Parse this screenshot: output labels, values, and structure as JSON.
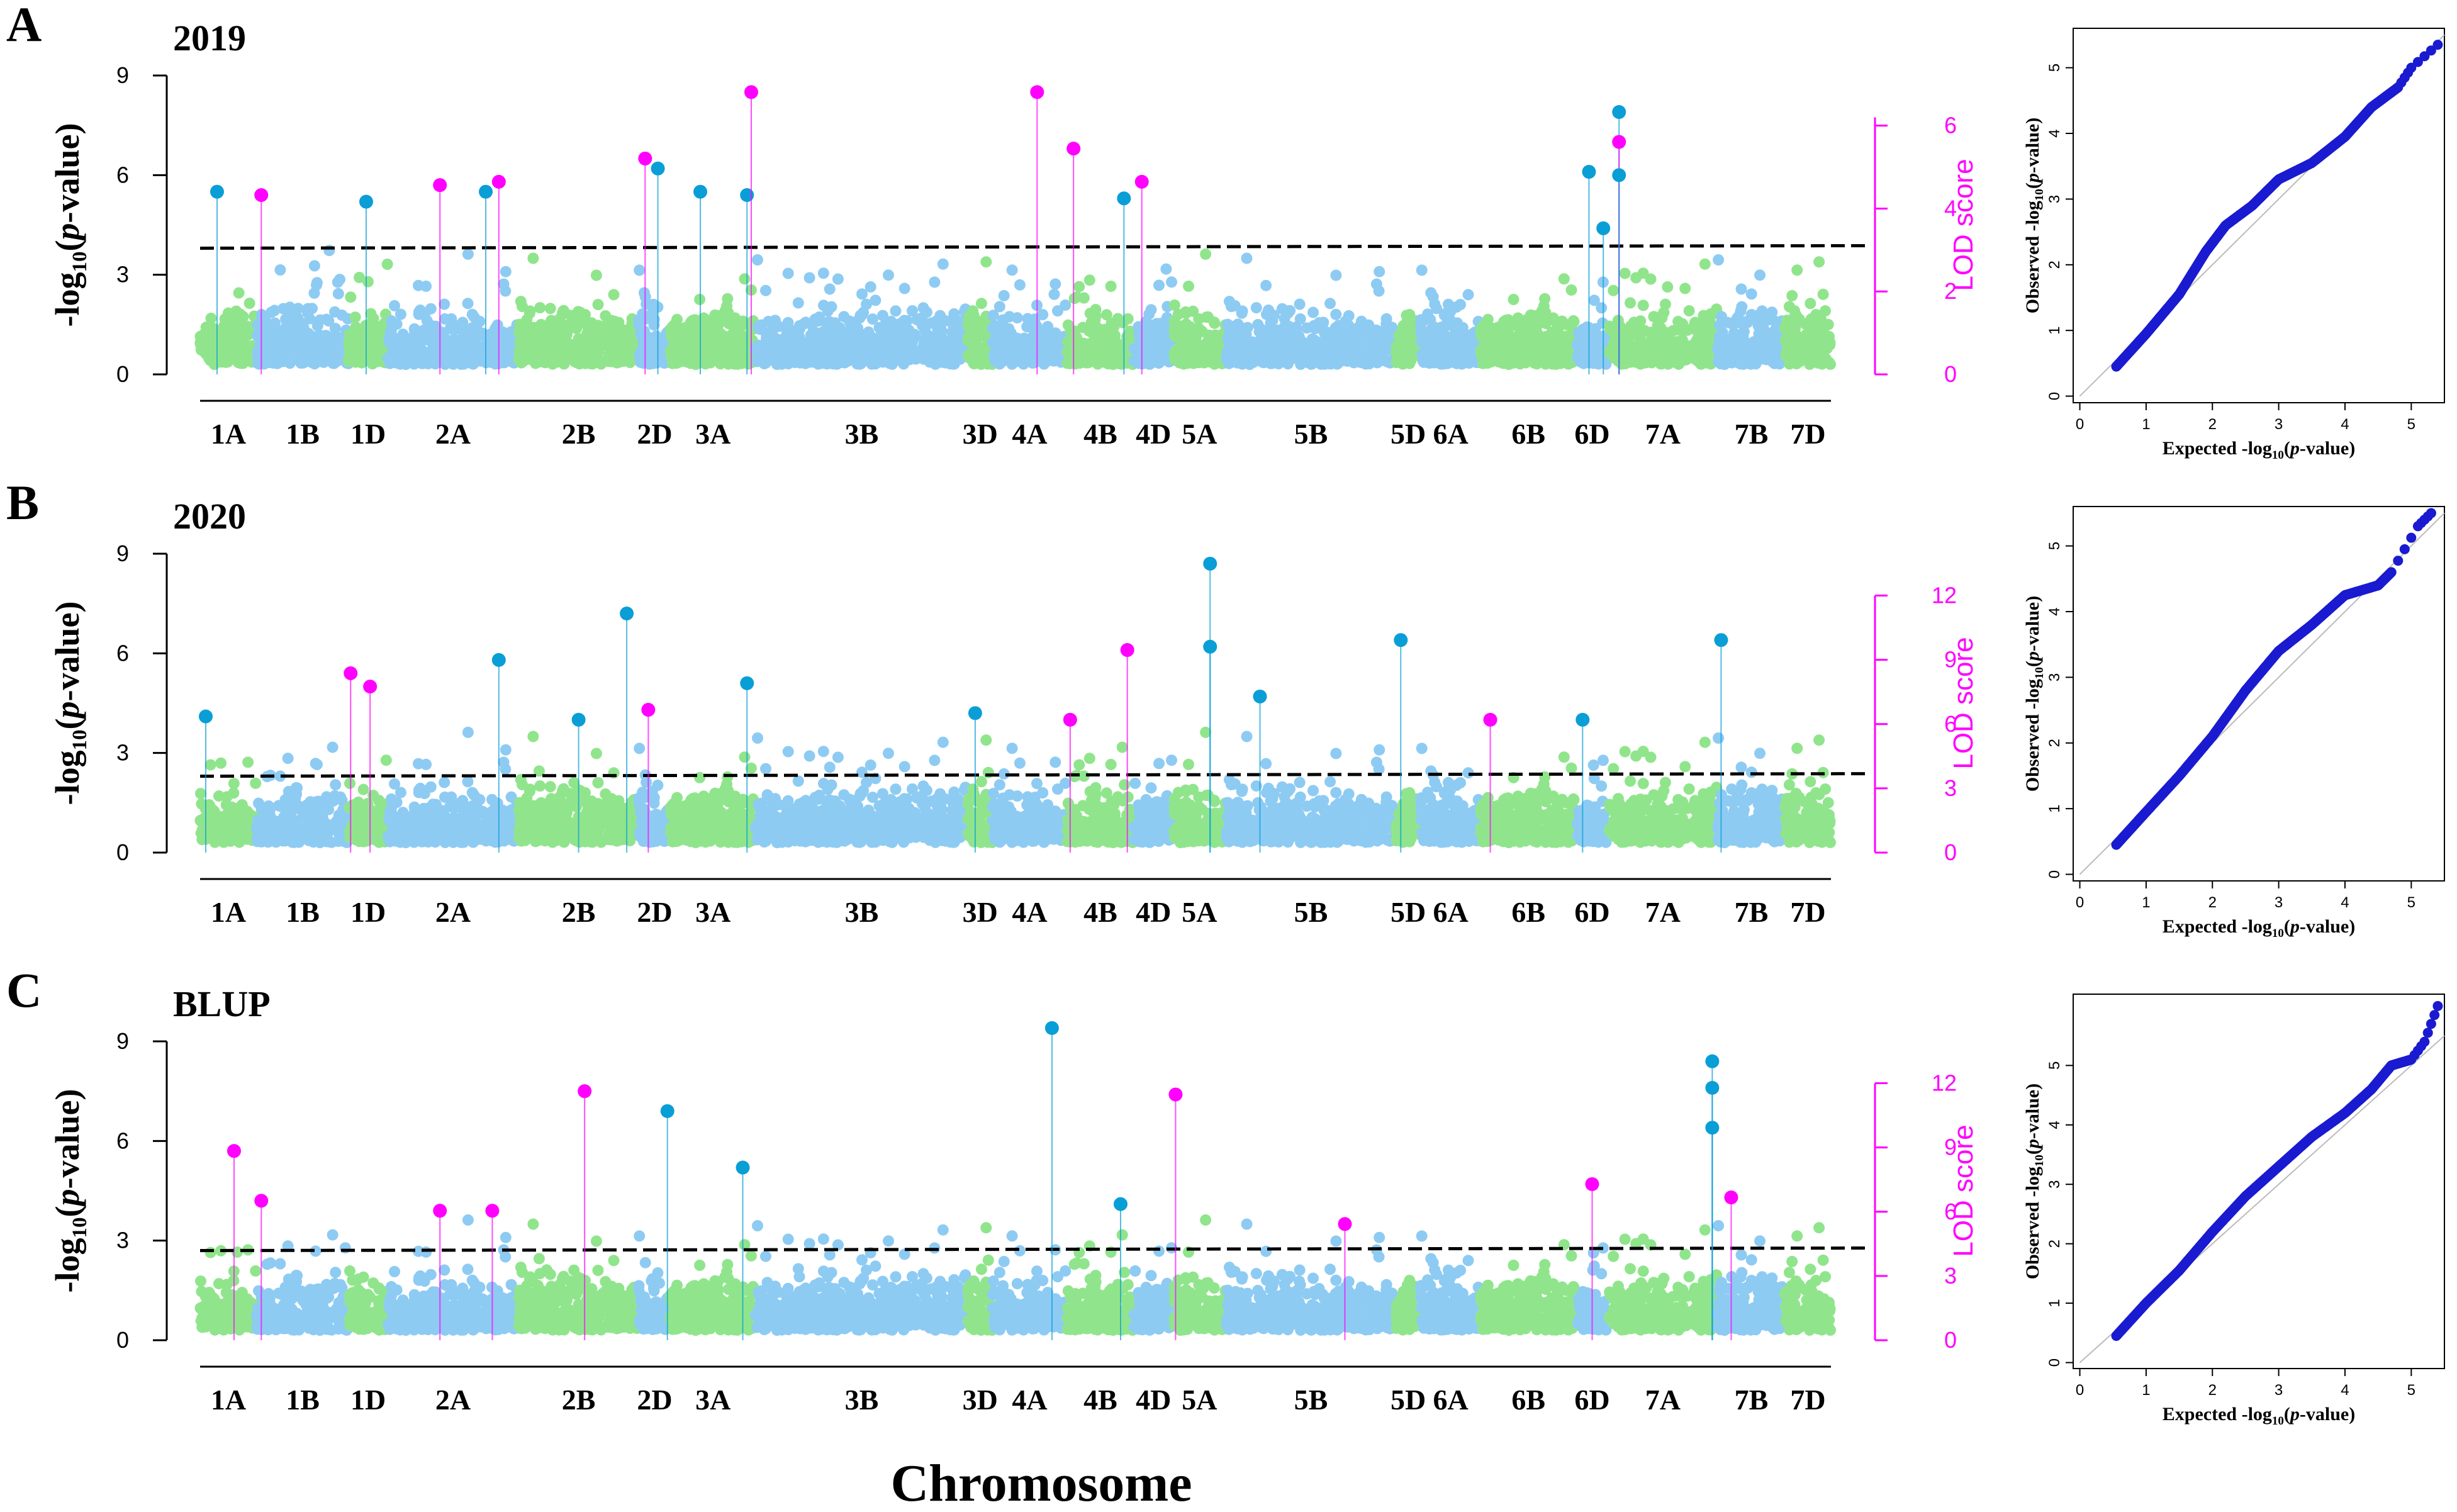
{
  "figure": {
    "colors": {
      "green": "#90e58c",
      "blue": "#8ecbf3",
      "lod": "#ff00ff",
      "snp_dark": "#0a9ed6",
      "qq_point": "#1a1ad0",
      "qq_line": "#bbbbbb",
      "threshold": "#000000"
    },
    "x_axis_label": "Chromosome",
    "chromosomes": [
      "1A",
      "1B",
      "1D",
      "2A",
      "2B",
      "2D",
      "3A",
      "3B",
      "3D",
      "4A",
      "4B",
      "4D",
      "5A",
      "5B",
      "5D",
      "6A",
      "6B",
      "6D",
      "7A",
      "7B",
      "7D"
    ],
    "chromosome_colors": [
      "green",
      "blue",
      "green",
      "blue",
      "green",
      "blue",
      "green",
      "blue",
      "green",
      "blue",
      "green",
      "blue",
      "green",
      "blue",
      "green",
      "blue",
      "green",
      "blue",
      "green",
      "blue",
      "green"
    ],
    "panels": [
      {
        "letter": "A",
        "title": "2019",
        "ylabel": "-log10(p-value)",
        "ylabel_parts": {
          "pre": "-log",
          "sub": "10",
          "mid": "(",
          "italic": "p",
          "post": "-value)"
        },
        "yticks": [
          0,
          3,
          6,
          9
        ],
        "ylim": [
          0,
          9
        ],
        "lod_label": "LOD score",
        "lod_ticks": [
          0,
          2,
          4,
          6
        ],
        "lod_lim": [
          0,
          6.2
        ],
        "threshold": 3.8,
        "peaks": [
          {
            "chr": "1A",
            "pos": 0.3,
            "value": 5.5,
            "color": "snp_dark"
          },
          {
            "chr": "1B",
            "pos": 0.05,
            "value": 5.4,
            "color": "lod"
          },
          {
            "chr": "1D",
            "pos": 0.45,
            "value": 5.2,
            "color": "snp_dark"
          },
          {
            "chr": "2A",
            "pos": 0.4,
            "value": 5.7,
            "color": "lod"
          },
          {
            "chr": "2A",
            "pos": 0.75,
            "value": 5.5,
            "color": "snp_dark"
          },
          {
            "chr": "2A",
            "pos": 0.85,
            "value": 5.8,
            "color": "lod"
          },
          {
            "chr": "2D",
            "pos": 0.2,
            "value": 6.5,
            "color": "lod"
          },
          {
            "chr": "2D",
            "pos": 0.6,
            "value": 6.2,
            "color": "snp_dark"
          },
          {
            "chr": "3A",
            "pos": 0.35,
            "value": 5.5,
            "color": "snp_dark"
          },
          {
            "chr": "3A",
            "pos": 0.9,
            "value": 5.4,
            "color": "snp_dark"
          },
          {
            "chr": "3A",
            "pos": 0.95,
            "value": 8.5,
            "color": "lod"
          },
          {
            "chr": "4A",
            "pos": 0.6,
            "value": 8.5,
            "color": "lod"
          },
          {
            "chr": "4B",
            "pos": 0.1,
            "value": 6.8,
            "color": "lod"
          },
          {
            "chr": "4B",
            "pos": 0.85,
            "value": 5.3,
            "color": "snp_dark"
          },
          {
            "chr": "4D",
            "pos": 0.2,
            "value": 5.8,
            "color": "lod"
          },
          {
            "chr": "6D",
            "pos": 0.4,
            "value": 6.1,
            "color": "snp_dark"
          },
          {
            "chr": "6D",
            "pos": 0.85,
            "value": 4.4,
            "color": "snp_dark"
          },
          {
            "chr": "7A",
            "pos": 0.1,
            "value": 7.9,
            "color": "snp_dark"
          },
          {
            "chr": "7A",
            "pos": 0.1,
            "value": 7.0,
            "color": "lod"
          },
          {
            "chr": "7A",
            "pos": 0.1,
            "value": 6.0,
            "color": "snp_dark"
          }
        ],
        "qq": {
          "xlabel": "Expected -log10(p-value)",
          "xlabel_parts": {
            "pre": "Expected -log",
            "sub": "10",
            "mid": "(",
            "italic": "p",
            "post": "-value)"
          },
          "ylabel": "Observed -log10(p-value)",
          "ylabel_parts": {
            "pre": "Observed -log",
            "sub": "10",
            "mid": "(",
            "italic": "p",
            "post": "-value)"
          },
          "xticks": [
            0,
            1,
            2,
            3,
            4,
            5
          ],
          "yticks": [
            0,
            1,
            2,
            3,
            4,
            5
          ],
          "xlim": [
            -0.1,
            5.5
          ],
          "ylim": [
            -0.1,
            5.6
          ],
          "curve": [
            [
              0.55,
              0.45
            ],
            [
              1.0,
              0.95
            ],
            [
              1.5,
              1.55
            ],
            [
              1.9,
              2.2
            ],
            [
              2.2,
              2.6
            ],
            [
              2.6,
              2.9
            ],
            [
              3.0,
              3.3
            ],
            [
              3.5,
              3.55
            ],
            [
              4.0,
              3.95
            ],
            [
              4.4,
              4.4
            ],
            [
              4.8,
              4.7
            ],
            [
              5.0,
              5.0
            ],
            [
              5.4,
              5.35
            ]
          ]
        }
      },
      {
        "letter": "B",
        "title": "2020",
        "ylabel": "-log10(p-value)",
        "ylabel_parts": {
          "pre": "-log",
          "sub": "10",
          "mid": "(",
          "italic": "p",
          "post": "-value)"
        },
        "yticks": [
          0,
          3,
          6,
          9
        ],
        "ylim": [
          0,
          9
        ],
        "lod_label": "LOD score",
        "lod_ticks": [
          0,
          3,
          6,
          9,
          12
        ],
        "lod_lim": [
          0,
          12
        ],
        "threshold": 2.3,
        "peaks": [
          {
            "chr": "1A",
            "pos": 0.1,
            "value": 4.1,
            "color": "snp_dark"
          },
          {
            "chr": "1D",
            "pos": 0.05,
            "value": 5.4,
            "color": "lod"
          },
          {
            "chr": "1D",
            "pos": 0.55,
            "value": 5.0,
            "color": "lod"
          },
          {
            "chr": "2A",
            "pos": 0.85,
            "value": 5.8,
            "color": "snp_dark"
          },
          {
            "chr": "2B",
            "pos": 0.5,
            "value": 4.0,
            "color": "snp_dark"
          },
          {
            "chr": "2B",
            "pos": 0.9,
            "value": 7.2,
            "color": "snp_dark"
          },
          {
            "chr": "2D",
            "pos": 0.3,
            "value": 4.3,
            "color": "lod"
          },
          {
            "chr": "3A",
            "pos": 0.9,
            "value": 5.1,
            "color": "snp_dark"
          },
          {
            "chr": "3D",
            "pos": 0.3,
            "value": 4.2,
            "color": "snp_dark"
          },
          {
            "chr": "4B",
            "pos": 0.05,
            "value": 4.0,
            "color": "lod"
          },
          {
            "chr": "4B",
            "pos": 0.9,
            "value": 6.1,
            "color": "lod"
          },
          {
            "chr": "5A",
            "pos": 0.7,
            "value": 8.7,
            "color": "snp_dark"
          },
          {
            "chr": "5A",
            "pos": 0.7,
            "value": 6.2,
            "color": "snp_dark"
          },
          {
            "chr": "5B",
            "pos": 0.2,
            "value": 4.7,
            "color": "snp_dark"
          },
          {
            "chr": "5D",
            "pos": 0.2,
            "value": 6.4,
            "color": "snp_dark"
          },
          {
            "chr": "6B",
            "pos": 0.1,
            "value": 4.0,
            "color": "lod"
          },
          {
            "chr": "6D",
            "pos": 0.2,
            "value": 4.0,
            "color": "snp_dark"
          },
          {
            "chr": "7B",
            "pos": 0.05,
            "value": 6.4,
            "color": "snp_dark"
          }
        ],
        "qq": {
          "xlabel": "Expected -log10(p-value)",
          "xlabel_parts": {
            "pre": "Expected -log",
            "sub": "10",
            "mid": "(",
            "italic": "p",
            "post": "-value)"
          },
          "ylabel": "Observed -log10(p-value)",
          "ylabel_parts": {
            "pre": "Observed -log",
            "sub": "10",
            "mid": "(",
            "italic": "p",
            "post": "-value)"
          },
          "xticks": [
            0,
            1,
            2,
            3,
            4,
            5
          ],
          "yticks": [
            0,
            1,
            2,
            3,
            4,
            5
          ],
          "xlim": [
            -0.1,
            5.5
          ],
          "ylim": [
            -0.1,
            5.6
          ],
          "curve": [
            [
              0.55,
              0.45
            ],
            [
              1.0,
              0.95
            ],
            [
              1.5,
              1.5
            ],
            [
              2.0,
              2.1
            ],
            [
              2.5,
              2.8
            ],
            [
              3.0,
              3.4
            ],
            [
              3.5,
              3.8
            ],
            [
              4.0,
              4.25
            ],
            [
              4.5,
              4.4
            ],
            [
              4.7,
              4.6
            ],
            [
              5.1,
              5.3
            ],
            [
              5.3,
              5.5
            ]
          ]
        }
      },
      {
        "letter": "C",
        "title": "BLUP",
        "ylabel": "-log10(p-value)",
        "ylabel_parts": {
          "pre": "-log",
          "sub": "10",
          "mid": "(",
          "italic": "p",
          "post": "-value)"
        },
        "yticks": [
          0,
          3,
          6,
          9
        ],
        "ylim": [
          0,
          9
        ],
        "lod_label": "LOD score",
        "lod_ticks": [
          0,
          3,
          6,
          9,
          12
        ],
        "lod_lim": [
          0,
          12
        ],
        "threshold": 2.7,
        "peaks": [
          {
            "chr": "1A",
            "pos": 0.6,
            "value": 5.7,
            "color": "lod"
          },
          {
            "chr": "1B",
            "pos": 0.05,
            "value": 4.2,
            "color": "lod"
          },
          {
            "chr": "2A",
            "pos": 0.4,
            "value": 3.9,
            "color": "lod"
          },
          {
            "chr": "2A",
            "pos": 0.8,
            "value": 3.9,
            "color": "lod"
          },
          {
            "chr": "2B",
            "pos": 0.55,
            "value": 7.5,
            "color": "lod"
          },
          {
            "chr": "2D",
            "pos": 0.9,
            "value": 6.9,
            "color": "snp_dark"
          },
          {
            "chr": "3A",
            "pos": 0.85,
            "value": 5.2,
            "color": "snp_dark"
          },
          {
            "chr": "4A",
            "pos": 0.8,
            "value": 9.4,
            "color": "snp_dark"
          },
          {
            "chr": "4B",
            "pos": 0.8,
            "value": 4.1,
            "color": "snp_dark"
          },
          {
            "chr": "5A",
            "pos": 0.05,
            "value": 7.4,
            "color": "lod"
          },
          {
            "chr": "5B",
            "pos": 0.7,
            "value": 3.5,
            "color": "lod"
          },
          {
            "chr": "6D",
            "pos": 0.5,
            "value": 4.7,
            "color": "lod"
          },
          {
            "chr": "7A",
            "pos": 0.95,
            "value": 8.4,
            "color": "snp_dark"
          },
          {
            "chr": "7A",
            "pos": 0.95,
            "value": 7.6,
            "color": "snp_dark"
          },
          {
            "chr": "7A",
            "pos": 0.95,
            "value": 6.4,
            "color": "snp_dark"
          },
          {
            "chr": "7B",
            "pos": 0.2,
            "value": 4.3,
            "color": "lod"
          }
        ],
        "qq": {
          "xlabel": "Expected -log10(p-value)",
          "xlabel_parts": {
            "pre": "Expected -log",
            "sub": "10",
            "mid": "(",
            "italic": "p",
            "post": "-value)"
          },
          "ylabel": "Observed -log10(p-value)",
          "ylabel_parts": {
            "pre": "Observed -log",
            "sub": "10",
            "mid": "(",
            "italic": "p",
            "post": "-value)"
          },
          "xticks": [
            0,
            1,
            2,
            3,
            4,
            5
          ],
          "yticks": [
            0,
            1,
            2,
            3,
            4,
            5
          ],
          "xlim": [
            -0.1,
            5.5
          ],
          "ylim": [
            -0.1,
            6.2
          ],
          "curve": [
            [
              0.55,
              0.45
            ],
            [
              1.0,
              1.0
            ],
            [
              1.5,
              1.55
            ],
            [
              2.0,
              2.2
            ],
            [
              2.5,
              2.8
            ],
            [
              3.0,
              3.3
            ],
            [
              3.5,
              3.8
            ],
            [
              4.0,
              4.2
            ],
            [
              4.4,
              4.6
            ],
            [
              4.7,
              5.0
            ],
            [
              5.0,
              5.1
            ],
            [
              5.2,
              5.4
            ],
            [
              5.4,
              6.0
            ]
          ]
        }
      }
    ]
  },
  "chart_data": [
    {
      "type": "scatter",
      "title": "2019",
      "ylabel": "-log10(p-value)",
      "xlabel": "Chromosome",
      "ylim": [
        0,
        9
      ],
      "secondary_ylabel": "LOD score",
      "secondary_ylim": [
        0,
        6.2
      ],
      "categories": [
        "1A",
        "1B",
        "1D",
        "2A",
        "2B",
        "2D",
        "3A",
        "3B",
        "3D",
        "4A",
        "4B",
        "4D",
        "5A",
        "5B",
        "5D",
        "6A",
        "6B",
        "6D",
        "7A",
        "7B",
        "7D"
      ],
      "threshold": 3.8,
      "grid": false
    },
    {
      "type": "scatter",
      "title": "2020",
      "ylabel": "-log10(p-value)",
      "xlabel": "Chromosome",
      "ylim": [
        0,
        9
      ],
      "secondary_ylabel": "LOD score",
      "secondary_ylim": [
        0,
        12
      ],
      "categories": [
        "1A",
        "1B",
        "1D",
        "2A",
        "2B",
        "2D",
        "3A",
        "3B",
        "3D",
        "4A",
        "4B",
        "4D",
        "5A",
        "5B",
        "5D",
        "6A",
        "6B",
        "6D",
        "7A",
        "7B",
        "7D"
      ],
      "threshold": 2.3,
      "grid": false
    },
    {
      "type": "scatter",
      "title": "BLUP",
      "ylabel": "-log10(p-value)",
      "xlabel": "Chromosome",
      "ylim": [
        0,
        9
      ],
      "secondary_ylabel": "LOD score",
      "secondary_ylim": [
        0,
        12
      ],
      "categories": [
        "1A",
        "1B",
        "1D",
        "2A",
        "2B",
        "2D",
        "3A",
        "3B",
        "3D",
        "4A",
        "4B",
        "4D",
        "5A",
        "5B",
        "5D",
        "6A",
        "6B",
        "6D",
        "7A",
        "7B",
        "7D"
      ],
      "threshold": 2.7,
      "grid": false
    },
    {
      "type": "scatter",
      "xlabel": "Expected -log10(p-value)",
      "ylabel": "Observed -log10(p-value)",
      "xlim": [
        0,
        5.5
      ],
      "ylim": [
        0,
        5.6
      ]
    },
    {
      "type": "scatter",
      "xlabel": "Expected -log10(p-value)",
      "ylabel": "Observed -log10(p-value)",
      "xlim": [
        0,
        5.5
      ],
      "ylim": [
        0,
        5.6
      ]
    },
    {
      "type": "scatter",
      "xlabel": "Expected -log10(p-value)",
      "ylabel": "Observed -log10(p-value)",
      "xlim": [
        0,
        5.5
      ],
      "ylim": [
        0,
        6.2
      ]
    }
  ]
}
